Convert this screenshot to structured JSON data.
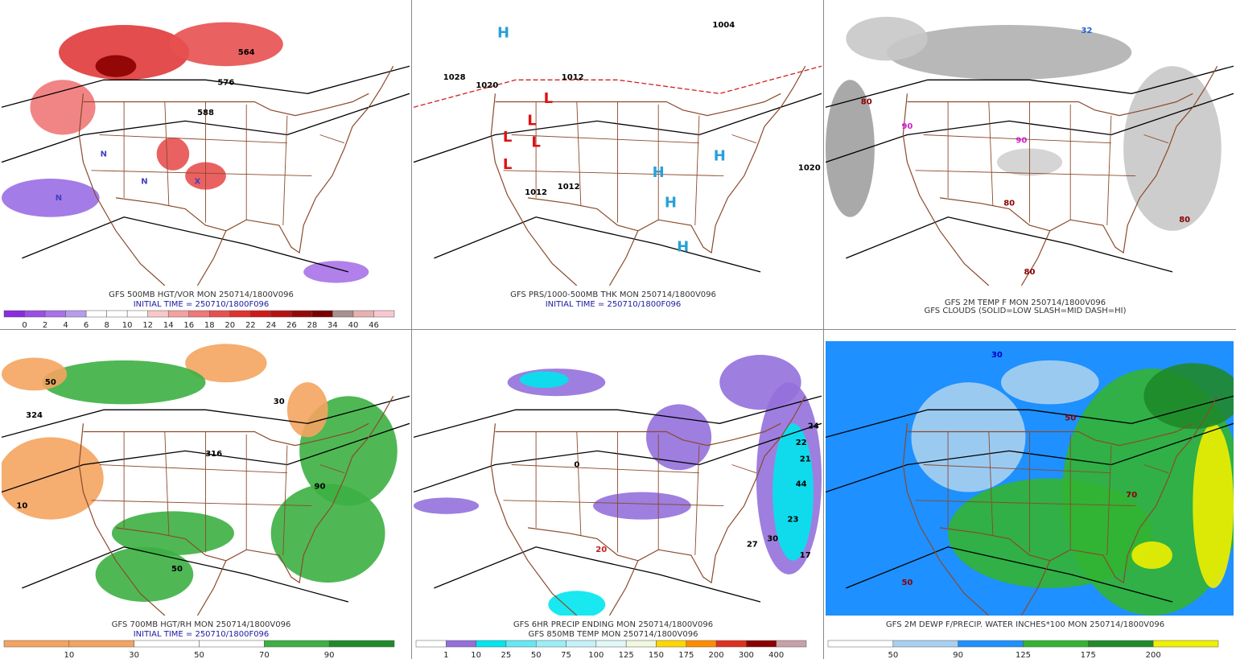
{
  "panels": [
    {
      "caption": [
        {
          "text": "GFS 500MB HGT/VOR MON 250714/1800V096",
          "color": "#333333"
        },
        {
          "text": "INITIAL TIME = 250710/1800F096",
          "color": "#1a1aa0"
        }
      ],
      "colorbar": {
        "labels": [
          0,
          2,
          4,
          6,
          8,
          10,
          12,
          14,
          16,
          18,
          20,
          22,
          24,
          26,
          28,
          34,
          40,
          46
        ],
        "colors": [
          "#8a2be2",
          "#9a4ee6",
          "#a872e8",
          "#b79bec",
          "#ffffff",
          "#ffffff",
          "#ffffff",
          "#f8c8c8",
          "#f4a0a0",
          "#f07878",
          "#e85050",
          "#e03030",
          "#d01818",
          "#b81010",
          "#960808",
          "#7a0000",
          "#a89090",
          "#e8b0b0",
          "#f8c8d0"
        ]
      },
      "labels": [
        {
          "text": "564",
          "color": "#000000"
        },
        {
          "text": "576",
          "color": "#000000"
        },
        {
          "text": "588",
          "color": "#000000"
        },
        {
          "text": "N",
          "color": "#4040c0"
        },
        {
          "text": "N",
          "color": "#4040c0"
        },
        {
          "text": "N",
          "color": "#4040c0"
        },
        {
          "text": "X",
          "color": "#4040c0"
        }
      ]
    },
    {
      "caption": [
        {
          "text": "GFS PRS/1000-500MB THK MON 250714/1800V096",
          "color": "#333333"
        },
        {
          "text": "INITIAL TIME = 250710/1800F096",
          "color": "#1a1aa0"
        }
      ],
      "labels": [
        {
          "text": "1028",
          "color": "#000000"
        },
        {
          "text": "1020",
          "color": "#000000"
        },
        {
          "text": "1012",
          "color": "#000000"
        },
        {
          "text": "1004",
          "color": "#000000"
        },
        {
          "text": "1012",
          "color": "#000000"
        },
        {
          "text": "1012",
          "color": "#000000"
        },
        {
          "text": "1020",
          "color": "#000000"
        },
        {
          "text": "L",
          "color": "#e01010"
        },
        {
          "text": "L",
          "color": "#e01010"
        },
        {
          "text": "L",
          "color": "#e01010"
        },
        {
          "text": "L",
          "color": "#e01010"
        },
        {
          "text": "L",
          "color": "#e01010"
        },
        {
          "text": "H",
          "color": "#2aa0d8"
        },
        {
          "text": "H",
          "color": "#2aa0d8"
        },
        {
          "text": "H",
          "color": "#2aa0d8"
        },
        {
          "text": "H",
          "color": "#2aa0d8"
        },
        {
          "text": "H",
          "color": "#2aa0d8"
        }
      ]
    },
    {
      "caption": [
        {
          "text": "GFS 2M TEMP F MON 250714/1800V096",
          "color": "#333333"
        },
        {
          "text": "GFS CLOUDS (SOLID=LOW SLASH=MID DASH=HI)",
          "color": "#333333"
        }
      ],
      "labels": [
        {
          "text": "80",
          "color": "#8b0000"
        },
        {
          "text": "90",
          "color": "#d020d0"
        },
        {
          "text": "90",
          "color": "#d020d0"
        },
        {
          "text": "80",
          "color": "#8b0000"
        },
        {
          "text": "80",
          "color": "#8b0000"
        },
        {
          "text": "80",
          "color": "#8b0000"
        },
        {
          "text": "32",
          "color": "#2060d0"
        }
      ]
    },
    {
      "caption": [
        {
          "text": "GFS 700MB HGT/RH MON 250714/1800V096",
          "color": "#333333"
        },
        {
          "text": "INITIAL TIME = 250710/1800F096",
          "color": "#1a1aa0"
        }
      ],
      "colorbar": {
        "labels": [
          10,
          30,
          50,
          70,
          90
        ],
        "colors": [
          "#f4a460",
          "#f4a460",
          "#ffffff",
          "#ffffff",
          "#3cb043",
          "#1f8a2a"
        ]
      },
      "labels": [
        {
          "text": "50",
          "color": "#000000"
        },
        {
          "text": "30",
          "color": "#000000"
        },
        {
          "text": "10",
          "color": "#000000"
        },
        {
          "text": "316",
          "color": "#000000"
        },
        {
          "text": "324",
          "color": "#000000"
        },
        {
          "text": "50",
          "color": "#000000"
        },
        {
          "text": "90",
          "color": "#000000"
        }
      ]
    },
    {
      "caption": [
        {
          "text": "GFS 6HR PRECIP ENDING MON 250714/1800V096",
          "color": "#333333"
        },
        {
          "text": "GFS 850MB TEMP MON 250714/1800V096",
          "color": "#333333"
        }
      ],
      "colorbar": {
        "labels": [
          1,
          10,
          25,
          50,
          75,
          100,
          125,
          150,
          175,
          200,
          300,
          400
        ],
        "colors": [
          "#ffffff",
          "#9370db",
          "#00e5ee",
          "#66e8f2",
          "#9ceef6",
          "#c4f2f8",
          "#e0f8f8",
          "#f0f8e0",
          "#ffd700",
          "#ff8c00",
          "#e03020",
          "#8b0000",
          "#c8a0a8"
        ]
      },
      "labels": [
        {
          "text": "24",
          "color": "#000000"
        },
        {
          "text": "22",
          "color": "#000000"
        },
        {
          "text": "21",
          "color": "#000000"
        },
        {
          "text": "44",
          "color": "#000000"
        },
        {
          "text": "23",
          "color": "#000000"
        },
        {
          "text": "27",
          "color": "#000000"
        },
        {
          "text": "30",
          "color": "#000000"
        },
        {
          "text": "17",
          "color": "#000000"
        },
        {
          "text": "20",
          "color": "#c02020"
        },
        {
          "text": "0",
          "color": "#000000"
        }
      ]
    },
    {
      "caption": [
        {
          "text": "GFS 2M DEWP F/PRECIP. WATER INCHES*100 MON 250714/1800V096",
          "color": "#333333"
        }
      ],
      "colorbar": {
        "labels": [
          50,
          90,
          125,
          175,
          200
        ],
        "colors": [
          "#ffffff",
          "#a8d0f0",
          "#1e90ff",
          "#32b432",
          "#1f8a2a",
          "#f0f000"
        ]
      },
      "labels": [
        {
          "text": "50",
          "color": "#8b0000"
        },
        {
          "text": "30",
          "color": "#0000c0"
        },
        {
          "text": "50",
          "color": "#8b0000"
        },
        {
          "text": "70",
          "color": "#8b0000"
        }
      ]
    }
  ]
}
